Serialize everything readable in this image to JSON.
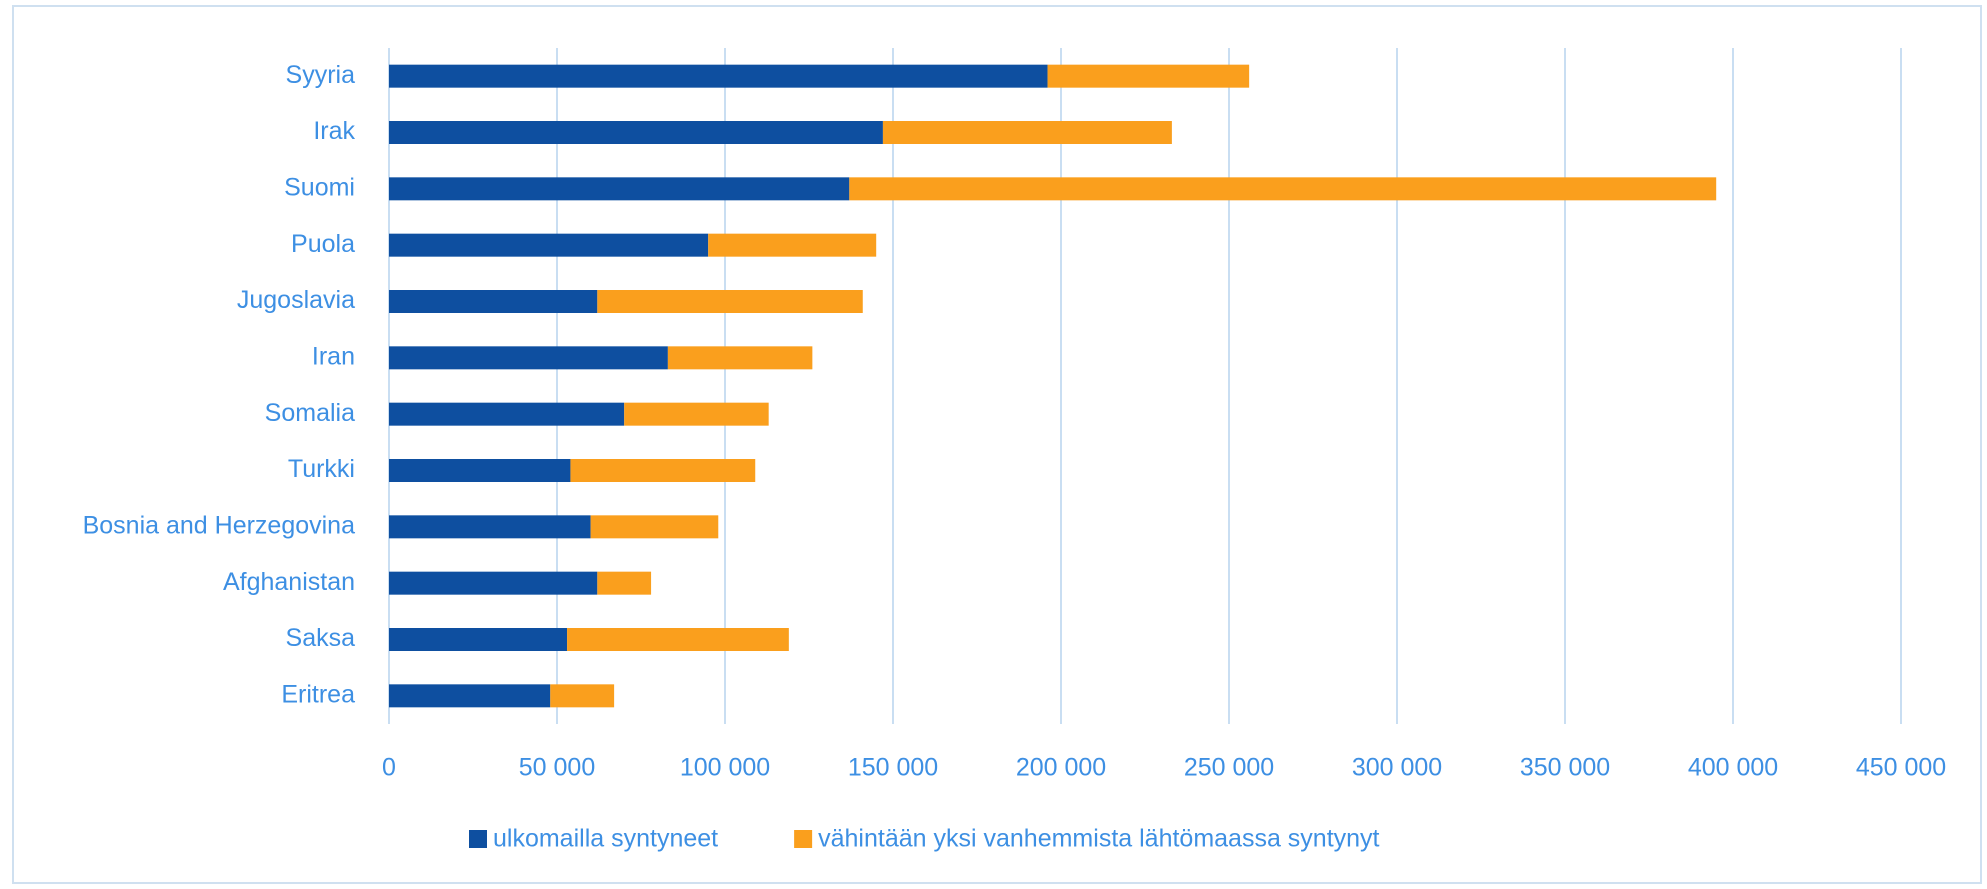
{
  "chart_data": {
    "type": "stacked_barh",
    "categories": [
      "Syyria",
      "Irak",
      "Suomi",
      "Puola",
      "Jugoslavia",
      "Iran",
      "Somalia",
      "Turkki",
      "Bosnia and Herzegovina",
      "Afghanistan",
      "Saksa",
      "Eritrea"
    ],
    "series": [
      {
        "name": "ulkomailla syntyneet",
        "color": "#0e4fa0",
        "values": [
          196000,
          147000,
          137000,
          95000,
          62000,
          83000,
          70000,
          54000,
          60000,
          62000,
          53000,
          48000
        ]
      },
      {
        "name": "vähintään yksi vanhemmista lähtömaassa syntynyt",
        "color": "#fa9f1d",
        "values": [
          60000,
          86000,
          258000,
          50000,
          79000,
          43000,
          43000,
          55000,
          38000,
          16000,
          66000,
          19000
        ]
      }
    ],
    "xlim": [
      0,
      450000
    ],
    "xticks": [
      0,
      {
        "value": 50000,
        "label": "50 000"
      },
      {
        "value": 100000,
        "label": "100 000"
      },
      {
        "value": 150000,
        "label": "150 000"
      },
      {
        "value": 200000,
        "label": "200 000"
      },
      {
        "value": 250000,
        "label": "250 000"
      },
      {
        "value": 300000,
        "label": "300 000"
      },
      {
        "value": 350000,
        "label": "350 000"
      },
      {
        "value": 400000,
        "label": "400 000"
      },
      {
        "value": 450000,
        "label": "450 000"
      }
    ],
    "grid": true,
    "legend": "bottom"
  }
}
